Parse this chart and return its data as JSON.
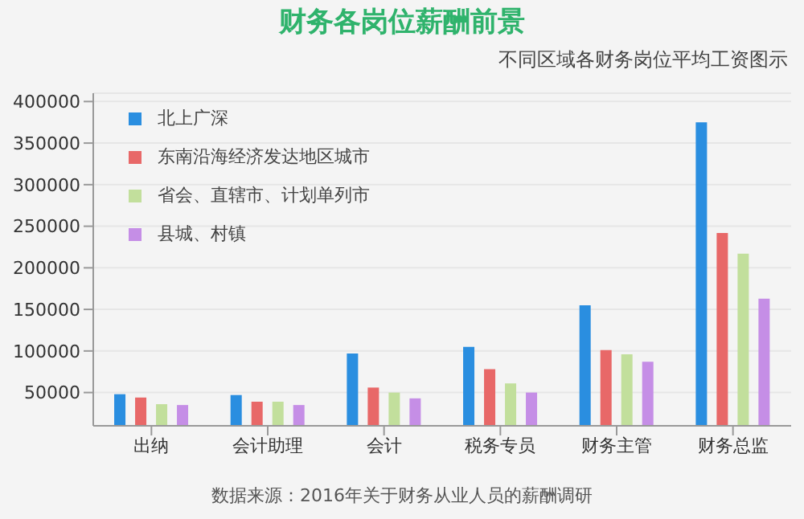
{
  "chart_data": {
    "type": "bar",
    "title": "财务各岗位薪酬前景",
    "subtitle": "不同区域各财务岗位平均工资图示",
    "categories": [
      "出纳",
      "会计助理",
      "会计",
      "税务专员",
      "财务主管",
      "财务总监"
    ],
    "series": [
      {
        "name": "北上广深",
        "color": "#2a8ee0",
        "values": [
          48000,
          47000,
          97000,
          105000,
          155000,
          375000
        ]
      },
      {
        "name": "东南沿海经济发达地区城市",
        "color": "#e86868",
        "values": [
          44000,
          39000,
          56000,
          78000,
          101000,
          242000
        ]
      },
      {
        "name": "省会、直辖市、计划单列市",
        "color": "#c2df9c",
        "values": [
          36000,
          39000,
          50000,
          61000,
          96000,
          217000
        ]
      },
      {
        "name": "县城、村镇",
        "color": "#c58ee6",
        "values": [
          35000,
          35000,
          43000,
          50000,
          87000,
          163000
        ]
      }
    ],
    "ylim": [
      10000,
      410000
    ],
    "yticks": [
      50000,
      100000,
      150000,
      200000,
      250000,
      300000,
      350000,
      400000
    ],
    "grid": "y",
    "legend": "top left",
    "annotations": [
      "数据来源：2016年关于财务从业人员的薪酬调研"
    ]
  }
}
